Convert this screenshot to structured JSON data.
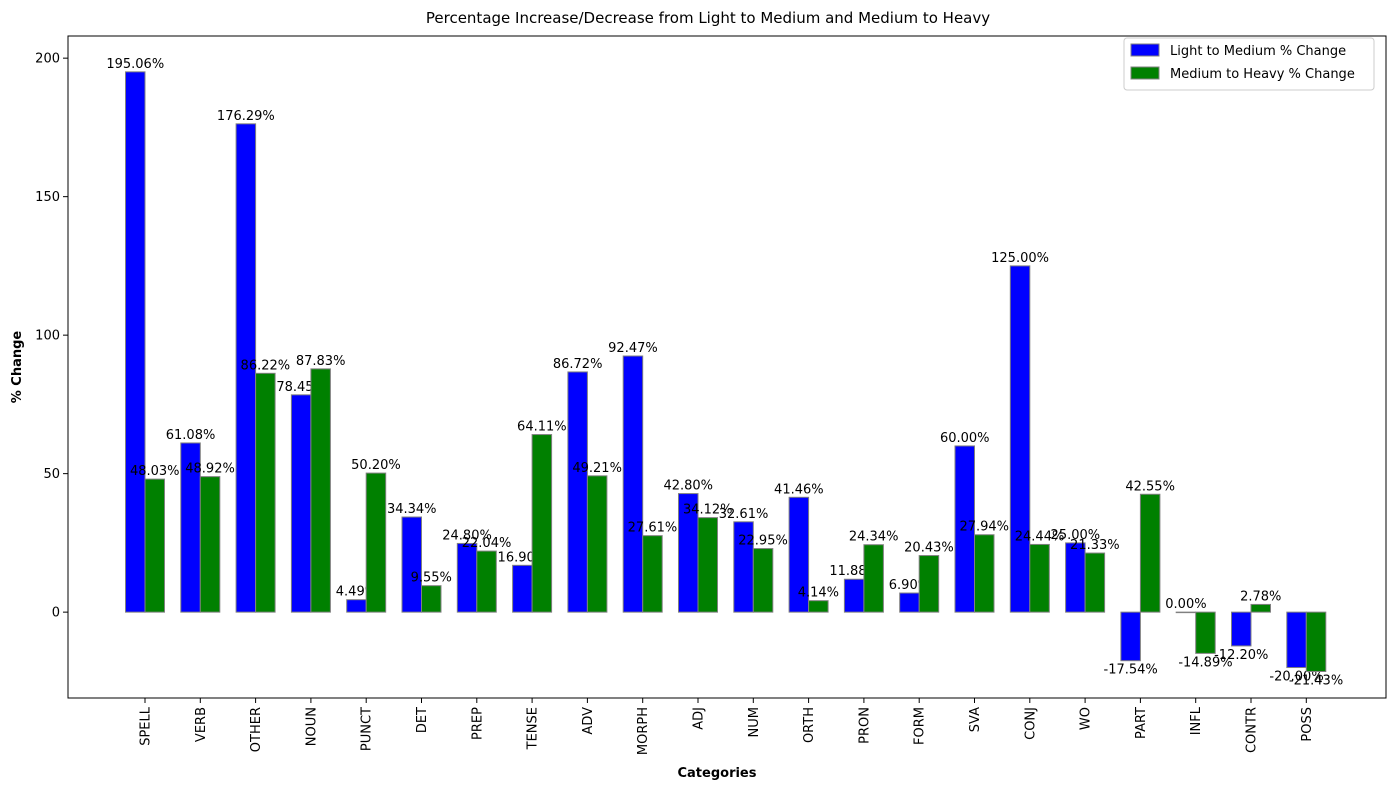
{
  "chart_data": {
    "type": "bar",
    "title": "Percentage Increase/Decrease from Light to Medium and Medium to Heavy",
    "xlabel": "Categories",
    "ylabel": "% Change",
    "ylim": [
      -31,
      208
    ],
    "yticks": [
      0,
      50,
      100,
      150,
      200
    ],
    "grid": false,
    "legend_position": "top-right",
    "categories": [
      "SPELL",
      "VERB",
      "OTHER",
      "NOUN",
      "PUNCT",
      "DET",
      "PREP",
      "TENSE",
      "ADV",
      "MORPH",
      "ADJ",
      "NUM",
      "ORTH",
      "PRON",
      "FORM",
      "SVA",
      "CONJ",
      "WO",
      "PART",
      "INFL",
      "CONTR",
      "POSS"
    ],
    "series": [
      {
        "name": "Light to Medium % Change",
        "color": "#0000ff",
        "values": [
          195.06,
          61.08,
          176.29,
          78.45,
          4.49,
          34.34,
          24.8,
          16.9,
          86.72,
          92.47,
          42.8,
          32.61,
          41.46,
          11.88,
          6.9,
          60.0,
          125.0,
          25.0,
          -17.54,
          0.0,
          -12.2,
          -20.0
        ],
        "labels": [
          "195.06%",
          "61.08%",
          "176.29%",
          "78.45%",
          "4.49%",
          "34.34%",
          "24.80%",
          "16.90%",
          "86.72%",
          "92.47%",
          "42.80%",
          "32.61%",
          "41.46%",
          "11.88%",
          "6.90%",
          "60.00%",
          "125.00%",
          "25.00%",
          "-17.54%",
          "0.00%",
          "-12.20%",
          "-20.00%"
        ]
      },
      {
        "name": "Medium to Heavy % Change",
        "color": "#008000",
        "values": [
          48.03,
          48.92,
          86.22,
          87.83,
          50.2,
          9.55,
          22.04,
          64.11,
          49.21,
          27.61,
          34.12,
          22.95,
          4.14,
          24.34,
          20.43,
          27.94,
          24.44,
          21.33,
          42.55,
          -14.89,
          2.78,
          -21.43
        ],
        "labels": [
          "48.03%",
          "48.92%",
          "86.22%",
          "87.83%",
          "50.20%",
          "9.55%",
          "22.04%",
          "64.11%",
          "49.21%",
          "27.61%",
          "34.12%",
          "22.95%",
          "4.14%",
          "24.34%",
          "20.43%",
          "27.94%",
          "24.44%",
          "21.33%",
          "42.55%",
          "-14.89%",
          "2.78%",
          "-21.43%"
        ]
      }
    ]
  }
}
